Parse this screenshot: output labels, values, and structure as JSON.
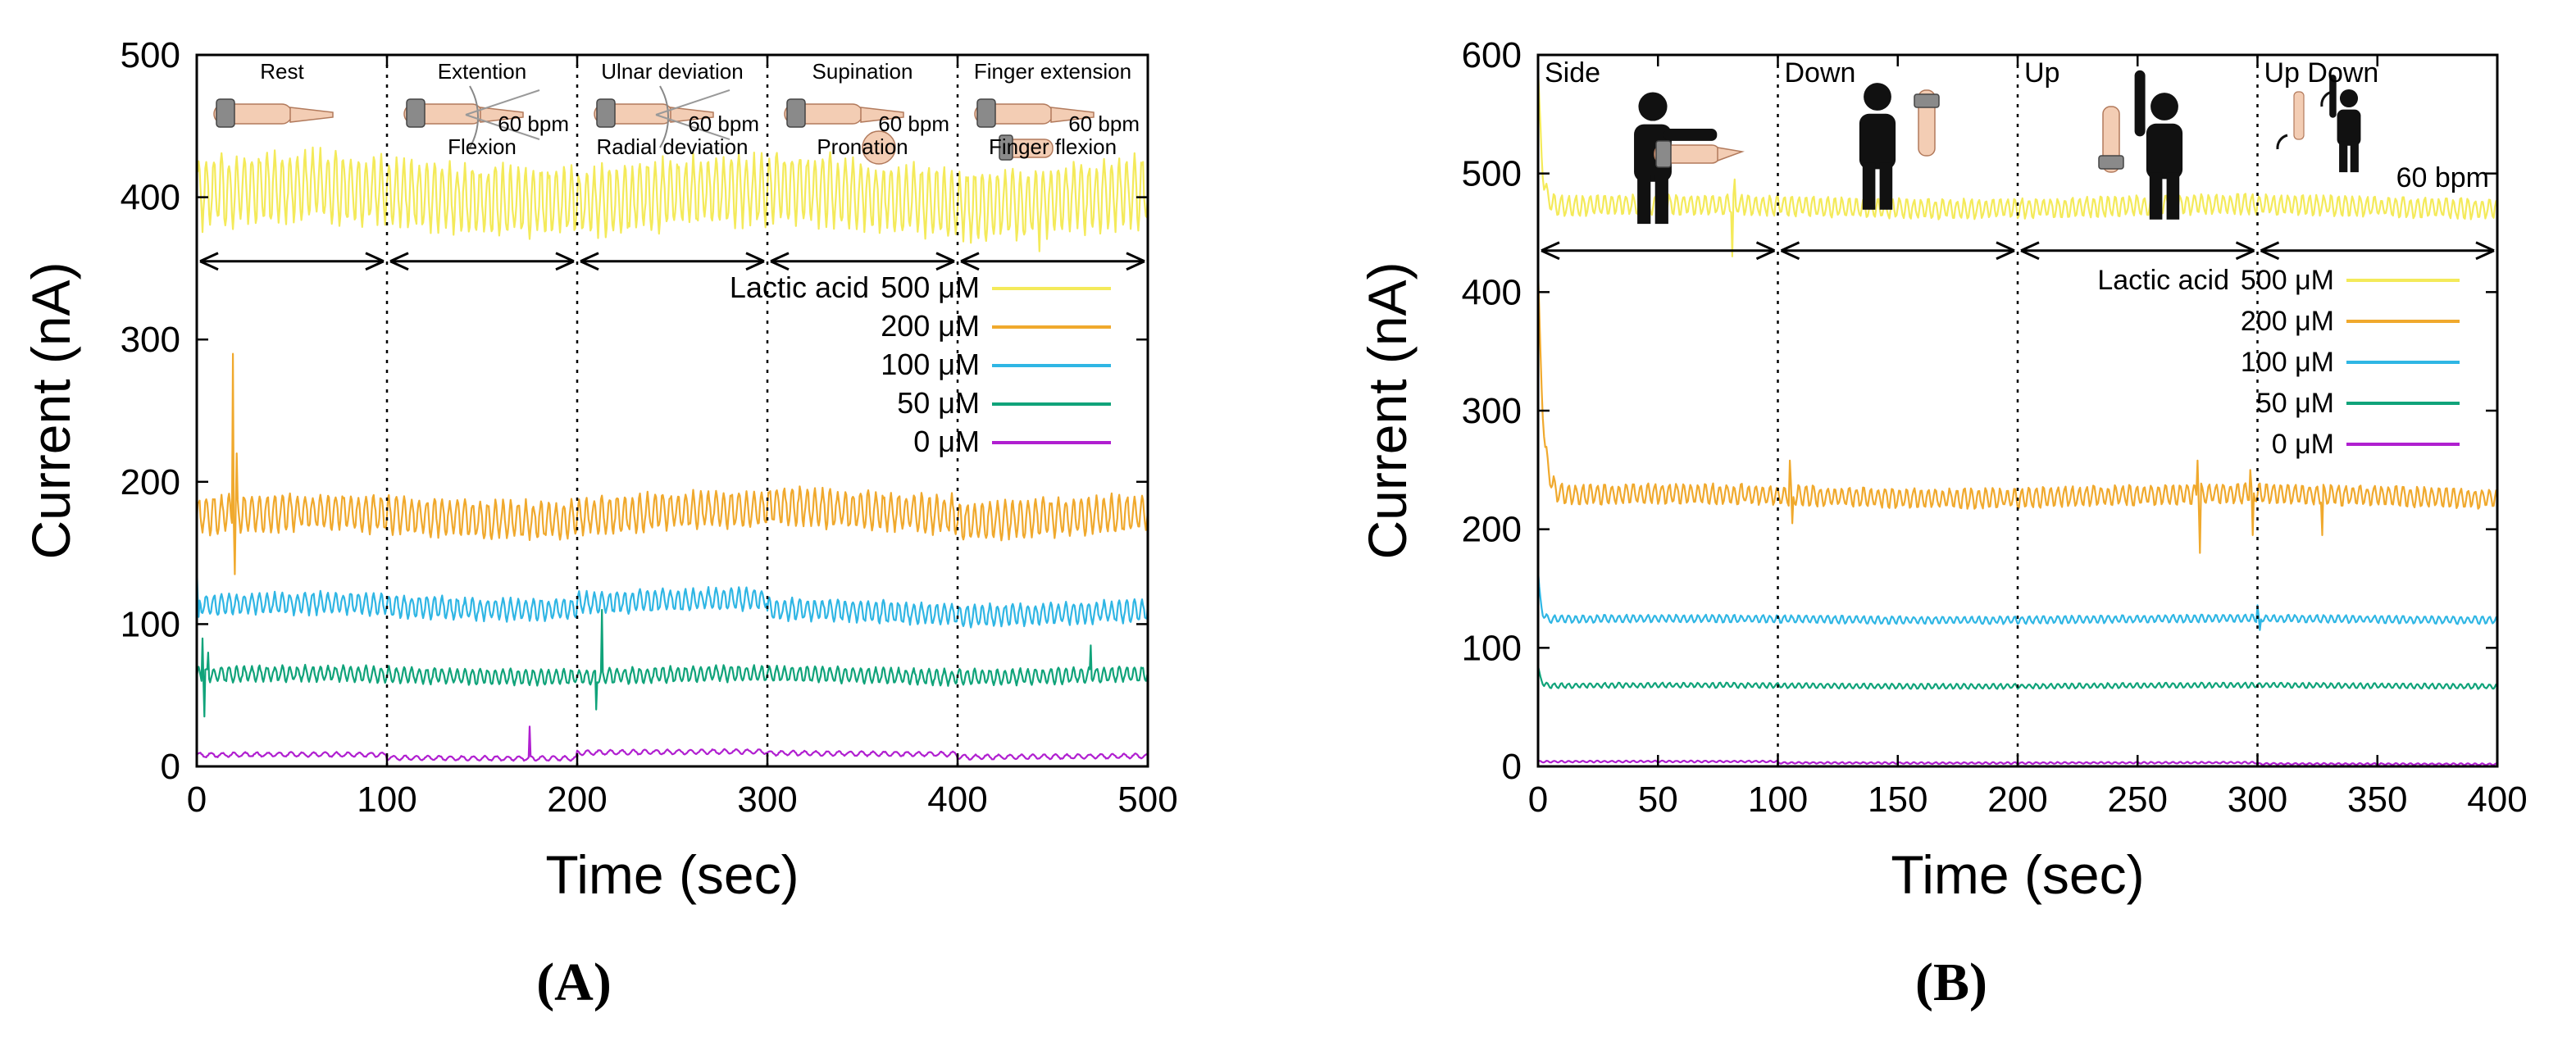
{
  "colors": {
    "500": "#f4ea5a",
    "200": "#f0a92d",
    "100": "#2fb6e4",
    "50": "#10a37a",
    "0": "#b01fd0",
    "axis": "#000000"
  },
  "chart_data": [
    {
      "type": "line",
      "panel_label": "(A)",
      "xlabel": "Time (sec)",
      "ylabel": "Current (nA)",
      "xlim": [
        0,
        500
      ],
      "ylim": [
        0,
        500
      ],
      "xticks": [
        0,
        100,
        200,
        300,
        400,
        500
      ],
      "yticks": [
        0,
        100,
        200,
        300,
        400,
        500
      ],
      "grid": false,
      "legend_title": "Lactic acid",
      "legend_position": "right-middle",
      "phase_dividers": [
        100,
        200,
        300,
        400
      ],
      "arrow_y": 355,
      "phases": [
        {
          "lines": [
            "Rest"
          ],
          "bpm": ""
        },
        {
          "lines": [
            "Extention",
            "Flexion"
          ],
          "bpm": "60 bpm"
        },
        {
          "lines": [
            "Ulnar deviation",
            "Radial deviation"
          ],
          "bpm": "60 bpm"
        },
        {
          "lines": [
            "Supination",
            "Pronation"
          ],
          "bpm": "60 bpm"
        },
        {
          "lines": [
            "Finger extension",
            "Finger flexion"
          ],
          "bpm": "60 bpm"
        }
      ],
      "series": [
        {
          "name": "500 μM",
          "key": "500",
          "base": 402,
          "amp": 22,
          "period": 4,
          "segments": [
            [
              0,
              100,
              402
            ],
            [
              100,
              200,
              402
            ],
            [
              200,
              300,
              400
            ],
            [
              300,
              400,
              402
            ],
            [
              400,
              500,
              400
            ]
          ],
          "spikes": [
            [
              0,
              430
            ],
            [
              443,
              362
            ]
          ]
        },
        {
          "name": "200 μM",
          "key": "200",
          "base": 176,
          "amp": 12,
          "period": 4,
          "segments": [
            [
              0,
              100,
              176
            ],
            [
              100,
              200,
              176
            ],
            [
              200,
              300,
              178
            ],
            [
              300,
              400,
              180
            ],
            [
              400,
              500,
              176
            ]
          ],
          "spikes": [
            [
              19,
              290
            ],
            [
              20,
              135
            ],
            [
              21,
              220
            ]
          ]
        },
        {
          "name": "100 μM",
          "key": "100",
          "base": 112,
          "amp": 7,
          "period": 4,
          "segments": [
            [
              0,
              100,
              113
            ],
            [
              100,
              200,
              112
            ],
            [
              200,
              300,
              116
            ],
            [
              300,
              400,
              109
            ],
            [
              400,
              500,
              108
            ]
          ],
          "spikes": [
            [
              0,
              140
            ],
            [
              1,
              105
            ]
          ]
        },
        {
          "name": "50 μM",
          "key": "50",
          "base": 64,
          "amp": 5,
          "period": 4,
          "segments": [
            [
              0,
              100,
              64
            ],
            [
              100,
              200,
              64
            ],
            [
              200,
              300,
              64
            ],
            [
              300,
              400,
              64
            ],
            [
              400,
              500,
              64
            ]
          ],
          "spikes": [
            [
              3,
              90
            ],
            [
              4,
              35
            ],
            [
              6,
              80
            ],
            [
              210,
              40
            ],
            [
              213,
              110
            ],
            [
              470,
              85
            ]
          ]
        },
        {
          "name": "0 μM",
          "key": "0",
          "base": 8,
          "amp": 1.5,
          "period": 6,
          "segments": [
            [
              0,
              100,
              8
            ],
            [
              100,
              200,
              6
            ],
            [
              200,
              300,
              10
            ],
            [
              300,
              400,
              9
            ],
            [
              400,
              500,
              7
            ]
          ],
          "spikes": [
            [
              175,
              28
            ]
          ]
        }
      ]
    },
    {
      "type": "line",
      "panel_label": "(B)",
      "xlabel": "Time (sec)",
      "ylabel": "Current (nA)",
      "xlim": [
        0,
        400
      ],
      "ylim": [
        0,
        600
      ],
      "xticks": [
        0,
        50,
        100,
        150,
        200,
        250,
        300,
        350,
        400
      ],
      "yticks": [
        0,
        100,
        200,
        300,
        400,
        500,
        600
      ],
      "grid": false,
      "legend_title": "Lactic acid",
      "legend_position": "right-middle",
      "phase_dividers": [
        100,
        200,
        300
      ],
      "arrow_y": 435,
      "phases": [
        {
          "lines": [
            "Side"
          ],
          "bpm": ""
        },
        {
          "lines": [
            "Down"
          ],
          "bpm": ""
        },
        {
          "lines": [
            "Up"
          ],
          "bpm": ""
        },
        {
          "lines": [
            "Up Down"
          ],
          "bpm": "60 bpm"
        }
      ],
      "series": [
        {
          "name": "500 μM",
          "key": "500",
          "base": 472,
          "amp": 8,
          "period": 3,
          "segments": [
            [
              0,
              100,
              472
            ],
            [
              100,
              200,
              472
            ],
            [
              200,
              300,
              472
            ],
            [
              300,
              400,
              472
            ]
          ],
          "decay": {
            "start": 590,
            "tau": 1.5
          },
          "spikes": [
            [
              81,
              430
            ],
            [
              82,
              495
            ]
          ]
        },
        {
          "name": "200 μM",
          "key": "200",
          "base": 228,
          "amp": 8,
          "period": 3,
          "segments": [
            [
              0,
              100,
              228
            ],
            [
              100,
              200,
              228
            ],
            [
              200,
              300,
              228
            ],
            [
              300,
              400,
              228
            ]
          ],
          "decay": {
            "start": 420,
            "tau": 2
          },
          "spikes": [
            [
              105,
              258
            ],
            [
              106,
              205
            ],
            [
              275,
              258
            ],
            [
              276,
              180
            ],
            [
              297,
              250
            ],
            [
              298,
              195
            ],
            [
              327,
              195
            ]
          ]
        },
        {
          "name": "100 μM",
          "key": "100",
          "base": 124,
          "amp": 3,
          "period": 3,
          "segments": [
            [
              0,
              100,
              124
            ],
            [
              100,
              200,
              124
            ],
            [
              200,
              300,
              124
            ],
            [
              300,
              400,
              124
            ]
          ],
          "decay": {
            "start": 165,
            "tau": 1
          },
          "spikes": [
            [
              300,
              136
            ],
            [
              301,
              115
            ]
          ]
        },
        {
          "name": "50 μM",
          "key": "50",
          "base": 68,
          "amp": 2,
          "period": 3,
          "segments": [
            [
              0,
              100,
              68
            ],
            [
              100,
              200,
              68
            ],
            [
              200,
              300,
              68
            ],
            [
              300,
              400,
              68
            ]
          ],
          "decay": {
            "start": 85,
            "tau": 1
          },
          "spikes": []
        },
        {
          "name": "0 μM",
          "key": "0",
          "base": 3,
          "amp": 0.7,
          "period": 3,
          "segments": [
            [
              0,
              100,
              4
            ],
            [
              100,
              200,
              3
            ],
            [
              200,
              300,
              3
            ],
            [
              300,
              400,
              2
            ]
          ],
          "spikes": []
        }
      ]
    }
  ]
}
